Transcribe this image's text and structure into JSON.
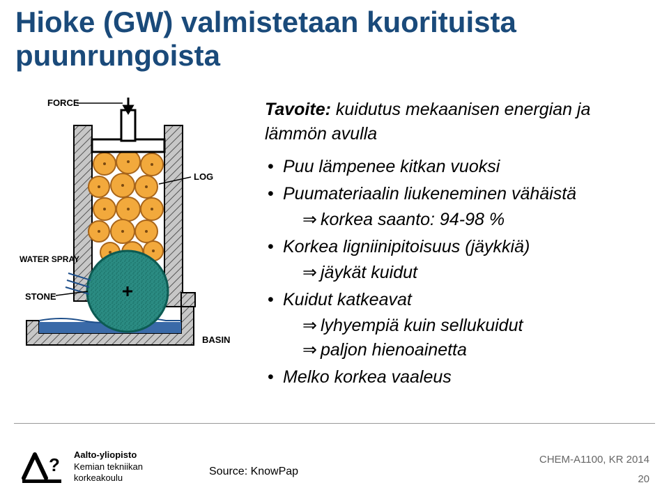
{
  "title_line1": "Hioke (GW) valmistetaan kuorituista",
  "title_line2": "puunrungoista",
  "subtitle_label": "Tavoite:",
  "subtitle_text": " kuidutus mekaanisen energian ja lämmön avulla",
  "bullets": [
    {
      "text": "Puu lämpenee kitkan vuoksi",
      "subs": []
    },
    {
      "text": "Puumateriaalin liukeneminen vähäistä",
      "subs": [
        "korkea saanto: 94-98 %"
      ]
    },
    {
      "text": "Korkea ligniinipitoisuus (jäykkiä)",
      "subs": [
        "jäykät kuidut"
      ]
    },
    {
      "text": "Kuidut katkeavat",
      "subs": [
        "lyhyempiä kuin sellukuidut",
        "paljon hienoainetta"
      ]
    },
    {
      "text": "Melko korkea vaaleus",
      "subs": []
    }
  ],
  "diagram": {
    "labels": {
      "force": "FORCE",
      "log": "LOG",
      "spray": "WATER SPRAY",
      "stone": "STONE",
      "basin": "BASIN"
    },
    "colors": {
      "log": "#f2a93c",
      "stone_fill": "#2b8b82",
      "stone_stroke": "#0c5b53",
      "basin_hatched": "#c7c7c7",
      "wall_fill": "#ffffff",
      "wall_stroke": "#000000",
      "water": "#3a6aa8",
      "label_color": "#000000"
    }
  },
  "logo": {
    "university": "Aalto-yliopisto",
    "l2": "Kemian tekniikan",
    "l3": "korkeakoulu"
  },
  "source": "Source: KnowPap",
  "footer_right": "CHEM-A1100, KR 2014",
  "page_number": "20"
}
